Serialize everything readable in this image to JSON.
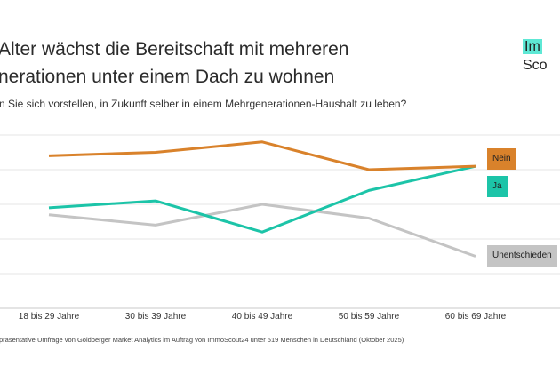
{
  "header": {
    "title_line1": "Alter wächst die Bereitschaft mit mehreren",
    "title_line2": "nerationen unter einem Dach zu wohnen",
    "subtitle": "n Sie sich vorstellen, in Zukunft selber in einem Mehrgenerationen-Haushalt zu leben?"
  },
  "logo": {
    "line1": "Im",
    "line2": "Sco"
  },
  "footnote": "präsentative Umfrage von Goldberger Market Analytics im Auftrag von ImmoScout24 unter 519 Menschen in Deutschland (Oktober 2025)",
  "chart_data": {
    "type": "line",
    "categories": [
      "18 bis 29 Jahre",
      "30 bis 39 Jahre",
      "40 bis 49 Jahre",
      "50 bis 59 Jahre",
      "60 bis 69 Jahre"
    ],
    "ylim": [
      0,
      50
    ],
    "grid": true,
    "series": [
      {
        "name": "Nein",
        "color": "#d9822b",
        "values": [
          44,
          45,
          48,
          40,
          41
        ]
      },
      {
        "name": "Ja",
        "color": "#1cc4a8",
        "values": [
          29,
          31,
          22,
          34,
          41
        ]
      },
      {
        "name": "Unentschieden",
        "color": "#c4c4c4",
        "values": [
          27,
          24,
          30,
          26,
          15
        ]
      }
    ]
  }
}
